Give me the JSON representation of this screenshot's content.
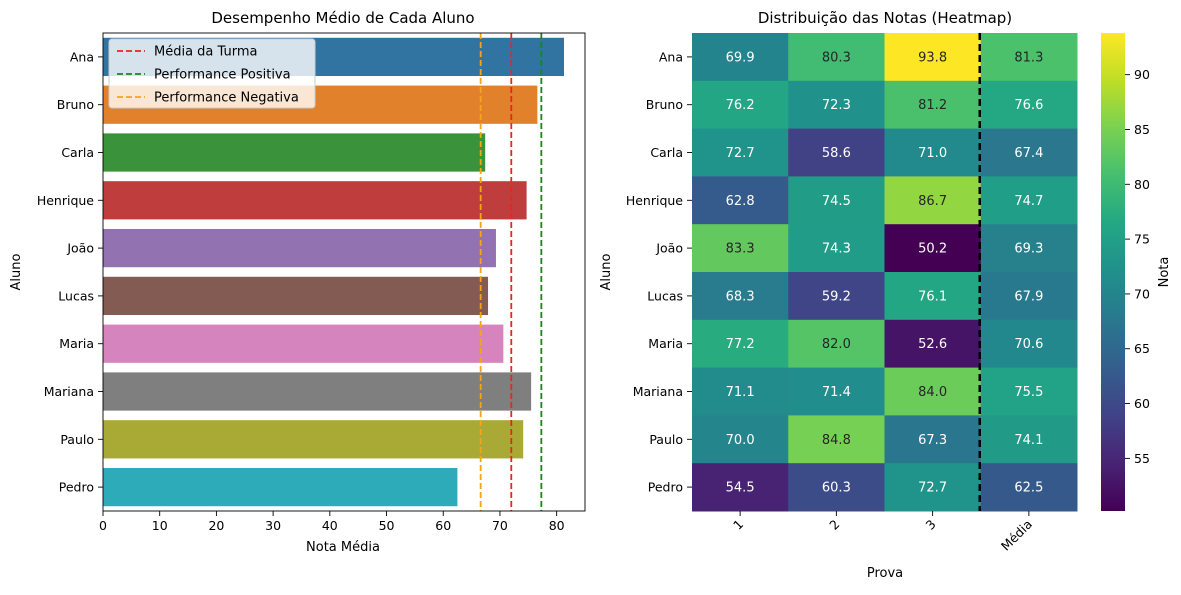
{
  "chart_data": [
    {
      "type": "bar",
      "orientation": "horizontal",
      "title": "Desempenho Médio de Cada Aluno",
      "xlabel": "Nota Média",
      "ylabel": "Aluno",
      "xlim": [
        0,
        85
      ],
      "xticks": [
        "0",
        "10",
        "20",
        "30",
        "40",
        "50",
        "60",
        "70",
        "80"
      ],
      "categories": [
        "Ana",
        "Bruno",
        "Carla",
        "Henrique",
        "João",
        "Lucas",
        "Maria",
        "Mariana",
        "Paulo",
        "Pedro"
      ],
      "values": [
        81.3,
        76.6,
        67.4,
        74.7,
        69.3,
        67.9,
        70.6,
        75.5,
        74.1,
        62.5
      ],
      "bar_colors": [
        "#3274a1",
        "#e1812c",
        "#3a923a",
        "#c03d3e",
        "#9372b2",
        "#845b53",
        "#d684bd",
        "#7f7f7f",
        "#a9aa35",
        "#2eabb8"
      ],
      "reference_lines": [
        {
          "name": "Média da Turma",
          "value": 72.0,
          "color": "#e8261e",
          "style": "dashed"
        },
        {
          "name": "Performance Positiva",
          "value": 77.3,
          "color": "#138a13",
          "style": "dashed"
        },
        {
          "name": "Performance Negativa",
          "value": 66.6,
          "color": "#f5a31a",
          "style": "dashed"
        }
      ],
      "legend_position": "top-left"
    },
    {
      "type": "heatmap",
      "title": "Distribuição das Notas (Heatmap)",
      "xlabel": "Prova",
      "ylabel": "Aluno",
      "columns": [
        "1",
        "2",
        "3",
        "Média"
      ],
      "rows": [
        "Ana",
        "Bruno",
        "Carla",
        "Henrique",
        "João",
        "Lucas",
        "Maria",
        "Mariana",
        "Paulo",
        "Pedro"
      ],
      "values": [
        [
          69.9,
          80.3,
          93.8,
          81.3
        ],
        [
          76.2,
          72.3,
          81.2,
          76.6
        ],
        [
          72.7,
          58.6,
          71.0,
          67.4
        ],
        [
          62.8,
          74.5,
          86.7,
          74.7
        ],
        [
          83.3,
          74.3,
          50.2,
          69.3
        ],
        [
          68.3,
          59.2,
          76.1,
          67.9
        ],
        [
          77.2,
          82.0,
          52.6,
          70.6
        ],
        [
          71.1,
          71.4,
          84.0,
          75.5
        ],
        [
          70.0,
          84.8,
          67.3,
          74.1
        ],
        [
          54.5,
          60.3,
          72.7,
          62.5
        ]
      ],
      "value_labels": [
        [
          "69.9",
          "80.3",
          "93.8",
          "81.3"
        ],
        [
          "76.2",
          "72.3",
          "81.2",
          "76.6"
        ],
        [
          "72.7",
          "58.6",
          "71.0",
          "67.4"
        ],
        [
          "62.8",
          "74.5",
          "86.7",
          "74.7"
        ],
        [
          "83.3",
          "74.3",
          "50.2",
          "69.3"
        ],
        [
          "68.3",
          "59.2",
          "76.1",
          "67.9"
        ],
        [
          "77.2",
          "82.0",
          "52.6",
          "70.6"
        ],
        [
          "71.1",
          "71.4",
          "84.0",
          "75.5"
        ],
        [
          "70.0",
          "84.8",
          "67.3",
          "74.1"
        ],
        [
          "54.5",
          "60.3",
          "72.7",
          "62.5"
        ]
      ],
      "colormap": "viridis",
      "vmin": 50.2,
      "vmax": 93.8,
      "colorbar_label": "Nota",
      "colorbar_ticks": [
        "55",
        "60",
        "65",
        "70",
        "75",
        "80",
        "85",
        "90"
      ],
      "separator_before_column": "Média"
    }
  ]
}
